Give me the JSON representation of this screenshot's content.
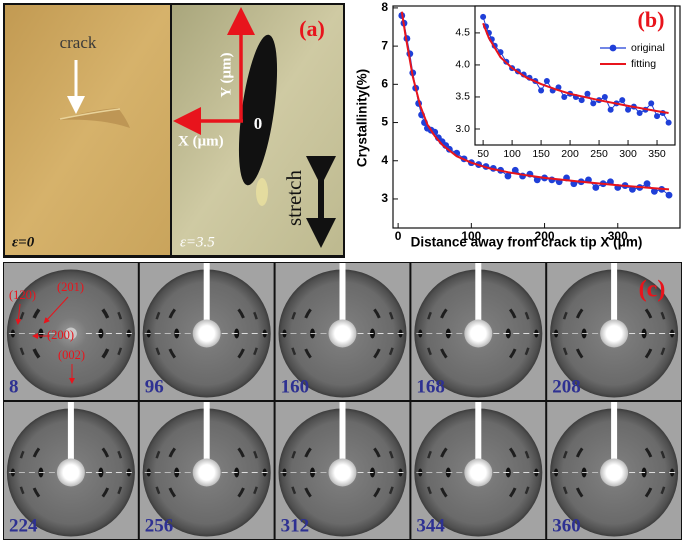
{
  "panel_a": {
    "crack": "crack",
    "strain_left": "ε=0",
    "strain_right": "ε=3.5",
    "y_axis": "Y (μm)",
    "x_axis": "X (μm)",
    "origin": "0",
    "panel_label": "(a)",
    "stretch": "stretch"
  },
  "chart_data": [
    {
      "type": "line",
      "panel_label": "(b)",
      "x_label": "Distance away from crack tip X (μm)",
      "y_label": "Crystallinity(%)",
      "xlim": [
        -7,
        385
      ],
      "ylim": [
        2.24,
        8.05
      ],
      "xticks": [
        0,
        100,
        200,
        300
      ],
      "yticks": [
        3,
        4,
        5,
        6,
        7,
        8
      ],
      "legend": "upper right",
      "series": [
        {
          "name": "original",
          "color": "#1f3fd8",
          "mode": "lines+markers",
          "x": [
            5,
            8,
            12,
            16,
            20,
            24,
            28,
            32,
            36,
            40,
            45,
            50,
            55,
            60,
            65,
            70,
            80,
            90,
            100,
            110,
            120,
            130,
            140,
            150,
            160,
            170,
            180,
            190,
            200,
            210,
            220,
            230,
            240,
            250,
            260,
            270,
            280,
            290,
            300,
            310,
            320,
            330,
            340,
            350,
            360,
            370
          ],
          "values": [
            7.8,
            7.6,
            7.2,
            6.8,
            6.3,
            5.9,
            5.5,
            5.2,
            5.0,
            4.85,
            4.8,
            4.75,
            4.6,
            4.5,
            4.4,
            4.3,
            4.2,
            4.05,
            3.95,
            3.9,
            3.85,
            3.8,
            3.75,
            3.6,
            3.75,
            3.6,
            3.65,
            3.5,
            3.55,
            3.5,
            3.45,
            3.55,
            3.4,
            3.45,
            3.5,
            3.3,
            3.4,
            3.45,
            3.3,
            3.35,
            3.25,
            3.3,
            3.4,
            3.2,
            3.25,
            3.1
          ]
        },
        {
          "name": "fitting",
          "color": "#e8141c",
          "mode": "lines",
          "x": [
            5,
            10,
            20,
            30,
            40,
            50,
            60,
            80,
            100,
            125,
            150,
            175,
            200,
            250,
            300,
            350,
            370
          ],
          "values": [
            7.9,
            7.3,
            6.2,
            5.45,
            4.95,
            4.65,
            4.42,
            4.12,
            3.95,
            3.8,
            3.7,
            3.62,
            3.55,
            3.45,
            3.36,
            3.28,
            3.25
          ]
        }
      ]
    },
    {
      "type": "line",
      "xlim": [
        36,
        381
      ],
      "ylim": [
        2.75,
        4.92
      ],
      "xticks": [
        50,
        100,
        150,
        200,
        250,
        300,
        350
      ],
      "yticks": [
        {
          "value": 3,
          "label": "3.0"
        },
        3.5,
        {
          "value": 4,
          "label": "4.0"
        },
        4.5
      ],
      "series": [
        {
          "color": "#1f3fd8",
          "mode": "lines+markers",
          "x": [
            50,
            55,
            60,
            65,
            70,
            80,
            90,
            100,
            110,
            120,
            130,
            140,
            150,
            160,
            170,
            180,
            190,
            200,
            210,
            220,
            230,
            240,
            250,
            260,
            270,
            280,
            290,
            300,
            310,
            320,
            330,
            340,
            350,
            360,
            370
          ],
          "values": [
            4.75,
            4.6,
            4.5,
            4.4,
            4.3,
            4.2,
            4.05,
            3.95,
            3.9,
            3.85,
            3.8,
            3.75,
            3.6,
            3.75,
            3.6,
            3.65,
            3.5,
            3.55,
            3.5,
            3.45,
            3.55,
            3.4,
            3.45,
            3.5,
            3.3,
            3.4,
            3.45,
            3.3,
            3.35,
            3.25,
            3.3,
            3.4,
            3.2,
            3.25,
            3.1
          ]
        },
        {
          "color": "#e8141c",
          "mode": "lines",
          "x": [
            50,
            60,
            80,
            100,
            125,
            150,
            175,
            200,
            250,
            300,
            350,
            370
          ],
          "values": [
            4.65,
            4.42,
            4.12,
            3.95,
            3.8,
            3.7,
            3.62,
            3.55,
            3.45,
            3.36,
            3.28,
            3.25
          ]
        }
      ]
    }
  ],
  "panel_c": {
    "panel_label": "(c)",
    "labels": [
      8,
      96,
      160,
      168,
      208,
      224,
      256,
      312,
      344,
      360
    ],
    "reflections": [
      "(120)",
      "(201)",
      "(200)",
      "(002)"
    ]
  }
}
